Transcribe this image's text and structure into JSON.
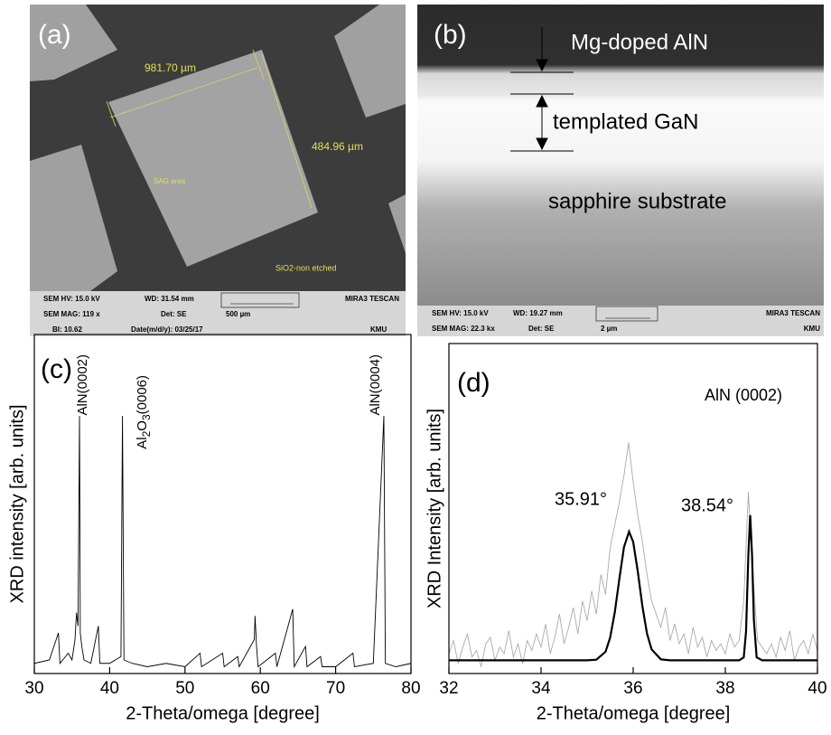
{
  "images": [
    {
      "label": "(a)",
      "measure_1": "981.70 µm",
      "measure_2": "484.96 µm",
      "region_1": "SAG area",
      "region_2": "SiO2-non etched",
      "info": [
        "SEM HV: 15.0 kV",
        "WD: 31.54 mm",
        "MIRA3 TESCAN",
        "SEM MAG: 119 x",
        "Det: SE",
        "500 µm",
        "BI: 10.62",
        "Date(m/d/y): 03/25/17",
        "KMU"
      ]
    },
    {
      "label": "(b)",
      "layers": [
        "Mg-doped AlN",
        "templated GaN",
        "sapphire substrate"
      ],
      "info": [
        "SEM HV: 15.0 kV",
        "WD: 19.27 mm",
        "MIRA3 TESCAN",
        "SEM MAG: 22.3 kx",
        "Det: SE",
        "2 µm",
        "KMU"
      ]
    }
  ],
  "chart_data": [
    {
      "type": "line",
      "panel": "(c)",
      "x_label": "2-Theta/omega [degree]",
      "y_label": "XRD intensity [arb. units]",
      "annotations": [
        "AlN(0002)",
        "Al2O3(0006)",
        "AlN(0004)"
      ],
      "xlim": [
        30,
        80
      ],
      "xticks": [
        30,
        40,
        50,
        60,
        70,
        80
      ],
      "ylim": [
        0,
        100
      ],
      "series": [
        {
          "color": "#000000",
          "x": [
            30,
            32,
            33.2,
            33.4,
            34.5,
            35.0,
            35.4,
            35.6,
            35.8,
            36.0,
            36.1,
            36.3,
            36.6,
            37.5,
            38.5,
            38.7,
            40,
            41.5,
            41.7,
            41.9,
            43,
            45,
            47.5,
            50,
            52,
            52.2,
            55,
            55.2,
            57,
            57.2,
            59.2,
            59.3,
            59.5,
            59.7,
            62,
            62.2,
            64.3,
            64.5,
            66,
            66.2,
            68,
            68.2,
            70,
            72.3,
            72.5,
            75,
            76.4,
            76.6,
            78,
            80
          ],
          "values": [
            3,
            4,
            12,
            3,
            6,
            4,
            10,
            18,
            14,
            76,
            12,
            8,
            4,
            3,
            14,
            3,
            3,
            5,
            76,
            4,
            3,
            2,
            3,
            2,
            6,
            2,
            6,
            2,
            5,
            2,
            10,
            17,
            8,
            2,
            6,
            2,
            19,
            2,
            8,
            2,
            5,
            2,
            2,
            6,
            2,
            3,
            76,
            3,
            2,
            3
          ]
        }
      ]
    },
    {
      "type": "line",
      "panel": "(d)",
      "x_label": "2-Theta/omega [degree]",
      "y_label": "XRD Intensity [arb. units]",
      "annotations": [
        "AlN (0002)",
        "35.91°",
        "38.54°"
      ],
      "xlim": [
        32,
        40
      ],
      "xticks": [
        32,
        34,
        36,
        38,
        40
      ],
      "ylim": [
        0,
        100
      ],
      "series": [
        {
          "color": "#aaaaaa",
          "x": [
            32.0,
            32.1,
            32.2,
            32.3,
            32.4,
            32.5,
            32.6,
            32.7,
            32.8,
            32.9,
            33.0,
            33.1,
            33.2,
            33.3,
            33.4,
            33.5,
            33.6,
            33.7,
            33.8,
            33.9,
            34.0,
            34.1,
            34.2,
            34.3,
            34.4,
            34.5,
            34.6,
            34.7,
            34.8,
            34.9,
            35.0,
            35.1,
            35.2,
            35.3,
            35.4,
            35.5,
            35.6,
            35.7,
            35.8,
            35.9,
            36.0,
            36.1,
            36.2,
            36.3,
            36.4,
            36.5,
            36.6,
            36.7,
            36.8,
            36.9,
            37.0,
            37.1,
            37.2,
            37.3,
            37.4,
            37.5,
            37.6,
            37.7,
            37.8,
            37.9,
            38.0,
            38.1,
            38.2,
            38.3,
            38.4,
            38.5,
            38.6,
            38.7,
            38.8,
            38.9,
            39.0,
            39.1,
            39.2,
            39.3,
            39.4,
            39.5,
            39.6,
            39.7,
            39.8,
            39.9,
            40.0
          ],
          "values": [
            6,
            10,
            3,
            8,
            12,
            5,
            7,
            2,
            9,
            11,
            4,
            8,
            6,
            13,
            5,
            9,
            3,
            10,
            7,
            12,
            8,
            15,
            6,
            11,
            18,
            9,
            14,
            20,
            12,
            22,
            16,
            25,
            18,
            30,
            24,
            38,
            45,
            52,
            60,
            70,
            58,
            48,
            40,
            30,
            22,
            18,
            14,
            20,
            10,
            15,
            9,
            12,
            6,
            14,
            8,
            11,
            5,
            10,
            7,
            9,
            6,
            12,
            8,
            10,
            22,
            55,
            30,
            10,
            8,
            6,
            9,
            5,
            11,
            7,
            13,
            4,
            8,
            10,
            6,
            12,
            7
          ]
        },
        {
          "color": "#000000",
          "x": [
            32,
            34.8,
            35.0,
            35.2,
            35.4,
            35.5,
            35.6,
            35.7,
            35.8,
            35.91,
            36.0,
            36.1,
            36.2,
            36.3,
            36.4,
            36.6,
            36.8,
            38.3,
            38.4,
            38.45,
            38.5,
            38.54,
            38.58,
            38.62,
            38.68,
            38.8,
            40
          ],
          "values": [
            4,
            4,
            4,
            4.2,
            6.6,
            10.9,
            18.5,
            28.7,
            38.3,
            43,
            39.9,
            30.9,
            20.4,
            12.1,
            7.3,
            4.3,
            4,
            4,
            4.9,
            12.7,
            36,
            48,
            36,
            16.2,
            4.9,
            4,
            4
          ]
        }
      ]
    }
  ]
}
